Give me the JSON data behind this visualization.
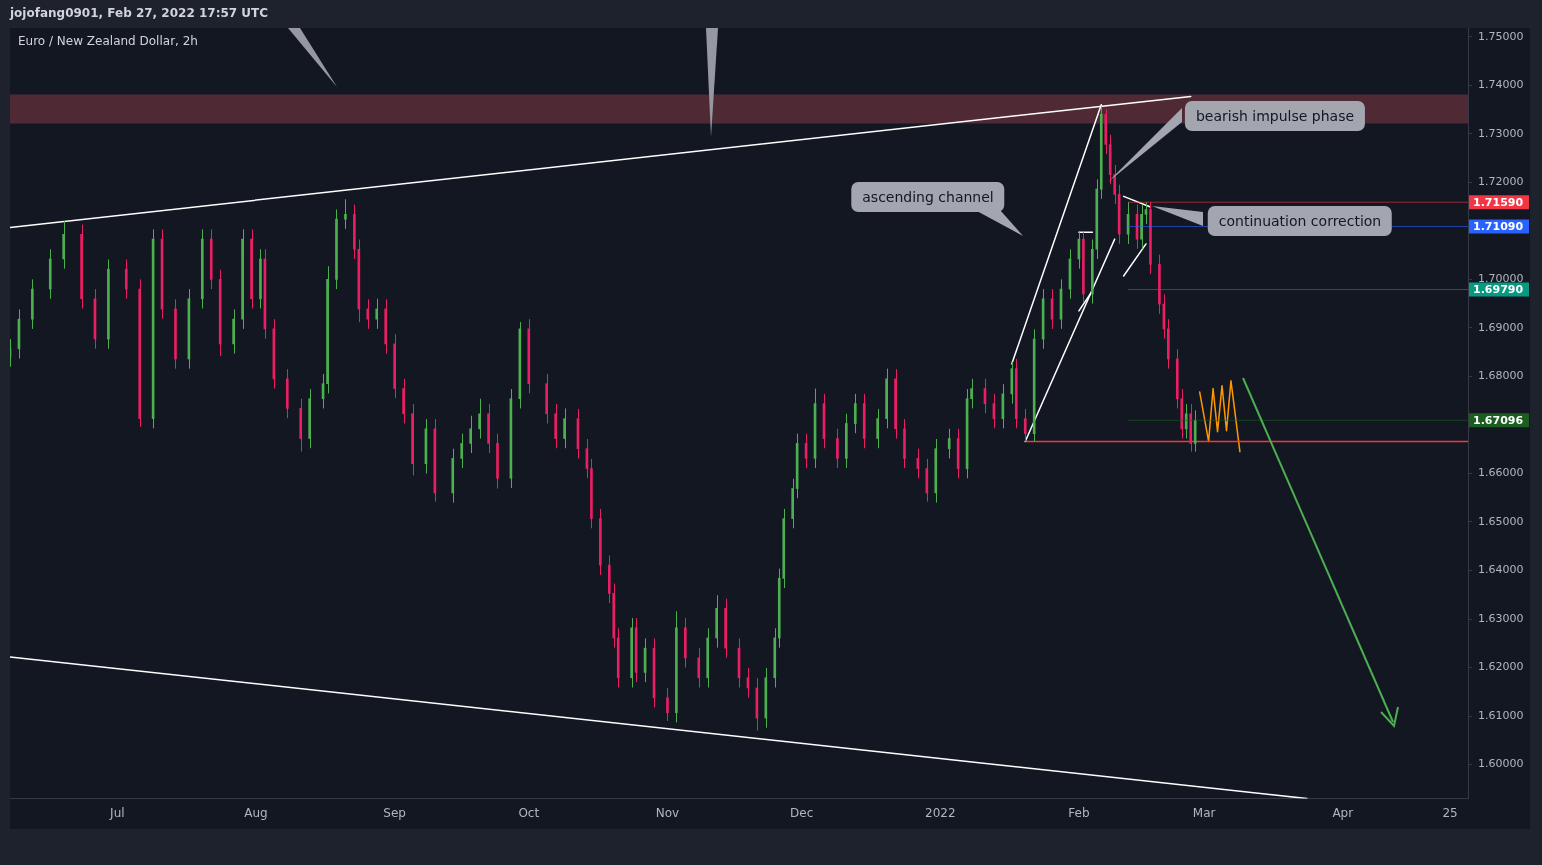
{
  "chart_data": {
    "type": "candlestick",
    "title": "Euro / New Zealand Dollar, 2h",
    "subtitle": "jojofang0901, Feb 27, 2022 17:57 UTC",
    "xlim": [
      "2021-06-07",
      "2022-04-29"
    ],
    "xticks": [
      {
        "value": "2021-07-01",
        "label": "Jul"
      },
      {
        "value": "2021-08-01",
        "label": "Aug"
      },
      {
        "value": "2021-09-01",
        "label": "Sep"
      },
      {
        "value": "2021-10-01",
        "label": "Oct"
      },
      {
        "value": "2021-11-01",
        "label": "Nov"
      },
      {
        "value": "2021-12-01",
        "label": "Dec"
      },
      {
        "value": "2022-01-01",
        "label": "2022"
      },
      {
        "value": "2022-02-01",
        "label": "Feb"
      },
      {
        "value": "2022-03-01",
        "label": "Mar"
      },
      {
        "value": "2022-04-01",
        "label": "Apr"
      },
      {
        "value": "2022-04-25",
        "label": "25"
      }
    ],
    "ylim": [
      1.593,
      1.7518
    ],
    "yticks": [
      {
        "value": 1.6,
        "label": "1.60000"
      },
      {
        "value": 1.61,
        "label": "1.61000"
      },
      {
        "value": 1.62,
        "label": "1.62000"
      },
      {
        "value": 1.63,
        "label": "1.63000"
      },
      {
        "value": 1.64,
        "label": "1.64000"
      },
      {
        "value": 1.65,
        "label": "1.65000"
      },
      {
        "value": 1.66,
        "label": "1.66000"
      },
      {
        "value": 1.67,
        "label": null
      },
      {
        "value": 1.68,
        "label": "1.68000"
      },
      {
        "value": 1.69,
        "label": "1.69000"
      },
      {
        "value": 1.7,
        "label": "1.70000"
      },
      {
        "value": 1.71,
        "label": null
      },
      {
        "value": 1.72,
        "label": "1.72000"
      },
      {
        "value": 1.73,
        "label": "1.73000"
      },
      {
        "value": 1.74,
        "label": "1.74000"
      },
      {
        "value": 1.75,
        "label": "1.75000"
      }
    ],
    "bands": [
      {
        "axis": "y",
        "from": 1.7321,
        "to": 1.7381,
        "color": "#4f2a35"
      }
    ],
    "annotations": [
      "ascending channel",
      "bearish impulse phase",
      "continuation correction"
    ],
    "ref_lines": [
      {
        "axis": "y",
        "value": 1.7159,
        "label": "1.71590",
        "color": "#f23645"
      },
      {
        "axis": "y",
        "value": 1.7109,
        "label": "1.71090",
        "color": "#2962ff"
      },
      {
        "axis": "y",
        "value": 1.6979,
        "label": "1.69790",
        "color": "#089981"
      },
      {
        "axis": "y",
        "value": 1.67096,
        "label": "1.67096",
        "color": "#1b5e20"
      }
    ],
    "series": [
      {
        "x": [
          "2021-06-07",
          "2021-06-09",
          "2021-06-12",
          "2021-06-16",
          "2021-06-19",
          "2021-06-23",
          "2021-06-26",
          "2021-06-29",
          "2021-07-03",
          "2021-07-06",
          "2021-07-09",
          "2021-07-11",
          "2021-07-14",
          "2021-07-17",
          "2021-07-20",
          "2021-07-22",
          "2021-07-24",
          "2021-07-27",
          "2021-07-29",
          "2021-07-31",
          "2021-08-02",
          "2021-08-03",
          "2021-08-05",
          "2021-08-08",
          "2021-08-11",
          "2021-08-13",
          "2021-08-16",
          "2021-08-17",
          "2021-08-19",
          "2021-08-21",
          "2021-08-23",
          "2021-08-24",
          "2021-08-26",
          "2021-08-28",
          "2021-08-30",
          "2021-09-01",
          "2021-09-03",
          "2021-09-05",
          "2021-09-08",
          "2021-09-10",
          "2021-09-14",
          "2021-09-16",
          "2021-09-18",
          "2021-09-20",
          "2021-09-22",
          "2021-09-24",
          "2021-09-27",
          "2021-09-29",
          "2021-10-01",
          "2021-10-05",
          "2021-10-07",
          "2021-10-09",
          "2021-10-12",
          "2021-10-14",
          "2021-10-15",
          "2021-10-17",
          "2021-10-19",
          "2021-10-20",
          "2021-10-21",
          "2021-10-24",
          "2021-10-25",
          "2021-10-27",
          "2021-10-29",
          "2021-11-01",
          "2021-11-03",
          "2021-11-05",
          "2021-11-08",
          "2021-11-10",
          "2021-11-12",
          "2021-11-14",
          "2021-11-17",
          "2021-11-19",
          "2021-11-21",
          "2021-11-23",
          "2021-11-25",
          "2021-11-26",
          "2021-11-27",
          "2021-11-29",
          "2021-11-30",
          "2021-12-02",
          "2021-12-04",
          "2021-12-06",
          "2021-12-09",
          "2021-12-11",
          "2021-12-13",
          "2021-12-15",
          "2021-12-18",
          "2021-12-20",
          "2021-12-22",
          "2021-12-24",
          "2021-12-27",
          "2021-12-29",
          "2021-12-31",
          "2022-01-03",
          "2022-01-05",
          "2022-01-07",
          "2022-01-08",
          "2022-01-11",
          "2022-01-13",
          "2022-01-15",
          "2022-01-17",
          "2022-01-18",
          "2022-01-20",
          "2022-01-22",
          "2022-01-24",
          "2022-01-26",
          "2022-01-28",
          "2022-01-30",
          "2022-02-01",
          "2022-02-02",
          "2022-02-04",
          "2022-02-05",
          "2022-02-06",
          "2022-02-07",
          "2022-02-08",
          "2022-02-09",
          "2022-02-10",
          "2022-02-12",
          "2022-02-14",
          "2022-02-15",
          "2022-02-16",
          "2022-02-17",
          "2022-02-19",
          "2022-02-20",
          "2022-02-21",
          "2022-02-23",
          "2022-02-24",
          "2022-02-25",
          "2022-02-26",
          "2022-02-27"
        ],
        "ohlc": [
          [
            1.684,
            1.6877,
            1.682,
            1.6857
          ],
          [
            1.6857,
            1.6938,
            1.6837,
            1.6918
          ],
          [
            1.6918,
            1.7,
            1.6898,
            1.698
          ],
          [
            1.698,
            1.7062,
            1.696,
            1.7042
          ],
          [
            1.7042,
            1.712,
            1.7022,
            1.7093
          ],
          [
            1.7093,
            1.7113,
            1.694,
            1.696
          ],
          [
            1.696,
            1.698,
            1.6857,
            1.6877
          ],
          [
            1.6877,
            1.7041,
            1.6857,
            1.7021
          ],
          [
            1.7021,
            1.7041,
            1.696,
            1.698
          ],
          [
            1.698,
            1.7,
            1.6696,
            1.6713
          ],
          [
            1.6713,
            1.7103,
            1.6693,
            1.7083
          ],
          [
            1.7083,
            1.7103,
            1.6919,
            1.6939
          ],
          [
            1.6939,
            1.6959,
            1.6816,
            1.6836
          ],
          [
            1.6836,
            1.698,
            1.6816,
            1.696
          ],
          [
            1.696,
            1.7103,
            1.694,
            1.7083
          ],
          [
            1.7083,
            1.7103,
            1.698,
            1.7
          ],
          [
            1.7,
            1.702,
            1.6842,
            1.6867
          ],
          [
            1.6867,
            1.6938,
            1.6847,
            1.6918
          ],
          [
            1.6918,
            1.7103,
            1.6898,
            1.7083
          ],
          [
            1.7083,
            1.7103,
            1.694,
            1.696
          ],
          [
            1.696,
            1.7062,
            1.694,
            1.7042
          ],
          [
            1.7042,
            1.7062,
            1.6878,
            1.6898
          ],
          [
            1.6898,
            1.6918,
            1.6775,
            1.6795
          ],
          [
            1.6795,
            1.6815,
            1.6714,
            1.6734
          ],
          [
            1.6734,
            1.6754,
            1.6645,
            1.6672
          ],
          [
            1.6672,
            1.6774,
            1.6652,
            1.6754
          ],
          [
            1.6754,
            1.6805,
            1.6734,
            1.6785
          ],
          [
            1.6785,
            1.7027,
            1.6765,
            1.7
          ],
          [
            1.7,
            1.7144,
            1.698,
            1.7124
          ],
          [
            1.7124,
            1.7165,
            1.7104,
            1.7134
          ],
          [
            1.7134,
            1.7154,
            1.7042,
            1.7062
          ],
          [
            1.7062,
            1.7082,
            1.6912,
            1.6939
          ],
          [
            1.6939,
            1.6959,
            1.6898,
            1.6918
          ],
          [
            1.6918,
            1.696,
            1.6898,
            1.6939
          ],
          [
            1.6939,
            1.6959,
            1.6847,
            1.6867
          ],
          [
            1.6867,
            1.6887,
            1.6755,
            1.6775
          ],
          [
            1.6775,
            1.6795,
            1.6703,
            1.6723
          ],
          [
            1.6723,
            1.6743,
            1.6596,
            1.662
          ],
          [
            1.662,
            1.6712,
            1.66,
            1.6692
          ],
          [
            1.6692,
            1.6712,
            1.6542,
            1.656
          ],
          [
            1.656,
            1.6651,
            1.654,
            1.6631
          ],
          [
            1.6631,
            1.6682,
            1.6611,
            1.6662
          ],
          [
            1.6662,
            1.6719,
            1.6642,
            1.6692
          ],
          [
            1.6692,
            1.6754,
            1.6672,
            1.6723
          ],
          [
            1.6723,
            1.6743,
            1.6642,
            1.6662
          ],
          [
            1.6662,
            1.6682,
            1.6569,
            1.659
          ],
          [
            1.659,
            1.6774,
            1.657,
            1.6754
          ],
          [
            1.6754,
            1.6912,
            1.6734,
            1.6898
          ],
          [
            1.6898,
            1.6918,
            1.6765,
            1.6785
          ],
          [
            1.6785,
            1.6805,
            1.6703,
            1.6723
          ],
          [
            1.6723,
            1.6743,
            1.6652,
            1.6672
          ],
          [
            1.6672,
            1.6734,
            1.6652,
            1.6713
          ],
          [
            1.6713,
            1.6733,
            1.6631,
            1.6651
          ],
          [
            1.6651,
            1.6671,
            1.659,
            1.661
          ],
          [
            1.661,
            1.663,
            1.6487,
            1.6507
          ],
          [
            1.6507,
            1.6527,
            1.6391,
            1.6411
          ],
          [
            1.6411,
            1.6431,
            1.6333,
            1.6353
          ],
          [
            1.6353,
            1.6373,
            1.6241,
            1.6261
          ],
          [
            1.6261,
            1.6281,
            1.6159,
            1.6179
          ],
          [
            1.6179,
            1.6302,
            1.6159,
            1.6282
          ],
          [
            1.6282,
            1.6302,
            1.617,
            1.619
          ],
          [
            1.619,
            1.626,
            1.617,
            1.624
          ],
          [
            1.624,
            1.626,
            1.6118,
            1.6138
          ],
          [
            1.6138,
            1.6158,
            1.609,
            1.6107
          ],
          [
            1.6107,
            1.6316,
            1.6087,
            1.6282
          ],
          [
            1.6282,
            1.6302,
            1.62,
            1.622
          ],
          [
            1.622,
            1.624,
            1.6159,
            1.6179
          ],
          [
            1.6179,
            1.6281,
            1.6159,
            1.6261
          ],
          [
            1.6261,
            1.6349,
            1.6241,
            1.6322
          ],
          [
            1.6322,
            1.6342,
            1.622,
            1.624
          ],
          [
            1.624,
            1.626,
            1.6159,
            1.6179
          ],
          [
            1.6179,
            1.6199,
            1.6138,
            1.6158
          ],
          [
            1.6158,
            1.6178,
            1.607,
            1.6096
          ],
          [
            1.6096,
            1.6199,
            1.6076,
            1.6179
          ],
          [
            1.6179,
            1.6281,
            1.6159,
            1.6261
          ],
          [
            1.6261,
            1.6404,
            1.6241,
            1.6384
          ],
          [
            1.6384,
            1.6527,
            1.6364,
            1.6507
          ],
          [
            1.6507,
            1.6589,
            1.6487,
            1.6569
          ],
          [
            1.6569,
            1.6682,
            1.6549,
            1.6662
          ],
          [
            1.6662,
            1.6682,
            1.6611,
            1.6631
          ],
          [
            1.6631,
            1.6775,
            1.6611,
            1.6744
          ],
          [
            1.6744,
            1.6764,
            1.6652,
            1.6672
          ],
          [
            1.6672,
            1.6692,
            1.6611,
            1.6631
          ],
          [
            1.6631,
            1.6723,
            1.6611,
            1.6703
          ],
          [
            1.6703,
            1.6764,
            1.6683,
            1.6744
          ],
          [
            1.6744,
            1.6764,
            1.6652,
            1.6672
          ],
          [
            1.6672,
            1.6733,
            1.6652,
            1.6713
          ],
          [
            1.6713,
            1.6816,
            1.6693,
            1.6795
          ],
          [
            1.6795,
            1.6815,
            1.6672,
            1.6692
          ],
          [
            1.6692,
            1.6712,
            1.6611,
            1.6631
          ],
          [
            1.6631,
            1.6651,
            1.659,
            1.661
          ],
          [
            1.661,
            1.663,
            1.6542,
            1.656
          ],
          [
            1.656,
            1.6671,
            1.654,
            1.6651
          ],
          [
            1.6651,
            1.6692,
            1.6631,
            1.6672
          ],
          [
            1.6672,
            1.6692,
            1.659,
            1.661
          ],
          [
            1.661,
            1.6774,
            1.659,
            1.6754
          ],
          [
            1.6754,
            1.6795,
            1.6734,
            1.6775
          ],
          [
            1.6775,
            1.6795,
            1.6724,
            1.6744
          ],
          [
            1.6744,
            1.6764,
            1.6693,
            1.6713
          ],
          [
            1.6713,
            1.6784,
            1.6693,
            1.6764
          ],
          [
            1.6764,
            1.683,
            1.6744,
            1.6816
          ],
          [
            1.6816,
            1.6836,
            1.6693,
            1.6713
          ],
          [
            1.6713,
            1.6733,
            1.6666,
            1.6682
          ],
          [
            1.6682,
            1.6897,
            1.6666,
            1.6877
          ],
          [
            1.6877,
            1.698,
            1.6857,
            1.696
          ],
          [
            1.696,
            1.698,
            1.6898,
            1.6918
          ],
          [
            1.6918,
            1.7,
            1.6898,
            1.698
          ],
          [
            1.698,
            1.7062,
            1.696,
            1.7042
          ],
          [
            1.7042,
            1.7097,
            1.7022,
            1.7083
          ],
          [
            1.7083,
            1.7097,
            1.6953,
            1.697
          ],
          [
            1.697,
            1.7082,
            1.695,
            1.7062
          ],
          [
            1.7062,
            1.7206,
            1.7042,
            1.7186
          ],
          [
            1.7186,
            1.7356,
            1.7166,
            1.734
          ],
          [
            1.734,
            1.735,
            1.7258,
            1.7278
          ],
          [
            1.7278,
            1.7298,
            1.7196,
            1.7216
          ],
          [
            1.7216,
            1.7236,
            1.7155,
            1.7175
          ],
          [
            1.7175,
            1.7195,
            1.7073,
            1.7093
          ],
          [
            1.7093,
            1.7159,
            1.7073,
            1.7134
          ],
          [
            1.7134,
            1.7154,
            1.7063,
            1.7083
          ],
          [
            1.7083,
            1.7154,
            1.7063,
            1.7134
          ],
          [
            1.7134,
            1.7159,
            1.7114,
            1.7144
          ],
          [
            1.7144,
            1.7159,
            1.7011,
            1.7031
          ],
          [
            1.7031,
            1.7051,
            1.6929,
            1.6949
          ],
          [
            1.6949,
            1.6969,
            1.6878,
            1.6898
          ],
          [
            1.6898,
            1.6918,
            1.6816,
            1.6836
          ],
          [
            1.6836,
            1.6856,
            1.6734,
            1.6754
          ],
          [
            1.6754,
            1.6774,
            1.6672,
            1.6692
          ],
          [
            1.6692,
            1.6743,
            1.6672,
            1.6723
          ],
          [
            1.6723,
            1.6743,
            1.6645,
            1.6662
          ],
          [
            1.6662,
            1.673,
            1.6645,
            1.67096
          ]
        ],
        "colors": [
          "#4caf50",
          "#4caf50",
          "#4caf50",
          "#4caf50",
          "#4caf50",
          "#e91e63",
          "#e91e63",
          "#4caf50",
          "#e91e63",
          "#e91e63",
          "#4caf50",
          "#e91e63",
          "#e91e63",
          "#4caf50",
          "#4caf50",
          "#e91e63",
          "#e91e63",
          "#4caf50",
          "#4caf50",
          "#e91e63",
          "#4caf50",
          "#e91e63",
          "#e91e63",
          "#e91e63",
          "#e91e63",
          "#4caf50",
          "#4caf50",
          "#4caf50",
          "#4caf50",
          "#4caf50",
          "#e91e63",
          "#e91e63",
          "#e91e63",
          "#4caf50",
          "#e91e63",
          "#e91e63",
          "#e91e63",
          "#e91e63",
          "#4caf50",
          "#e91e63",
          "#4caf50",
          "#4caf50",
          "#4caf50",
          "#4caf50",
          "#e91e63",
          "#e91e63",
          "#4caf50",
          "#4caf50",
          "#e91e63",
          "#e91e63",
          "#e91e63",
          "#4caf50",
          "#e91e63",
          "#e91e63",
          "#e91e63",
          "#e91e63",
          "#e91e63",
          "#e91e63",
          "#e91e63",
          "#4caf50",
          "#e91e63",
          "#4caf50",
          "#e91e63",
          "#e91e63",
          "#4caf50",
          "#e91e63",
          "#e91e63",
          "#4caf50",
          "#4caf50",
          "#e91e63",
          "#e91e63",
          "#e91e63",
          "#e91e63",
          "#4caf50",
          "#4caf50",
          "#4caf50",
          "#4caf50",
          "#4caf50",
          "#4caf50",
          "#e91e63",
          "#4caf50",
          "#e91e63",
          "#e91e63",
          "#4caf50",
          "#4caf50",
          "#e91e63",
          "#4caf50",
          "#4caf50",
          "#e91e63",
          "#e91e63",
          "#e91e63",
          "#e91e63",
          "#4caf50",
          "#4caf50",
          "#e91e63",
          "#4caf50",
          "#4caf50",
          "#e91e63",
          "#e91e63",
          "#4caf50",
          "#4caf50",
          "#e91e63",
          "#e91e63",
          "#4caf50",
          "#4caf50",
          "#e91e63",
          "#4caf50",
          "#4caf50",
          "#4caf50",
          "#e91e63",
          "#4caf50",
          "#4caf50",
          "#4caf50",
          "#e91e63",
          "#e91e63",
          "#e91e63",
          "#e91e63",
          "#4caf50",
          "#e91e63",
          "#4caf50",
          "#4caf50",
          "#e91e63",
          "#e91e63",
          "#e91e63",
          "#e91e63",
          "#e91e63",
          "#e91e63",
          "#4caf50",
          "#e91e63",
          "#4caf50"
        ]
      },
      {
        "type": "line",
        "color": "#ffffff",
        "x": [
          "2021-06-07",
          "2022-02-26"
        ],
        "values": [
          1.7107,
          1.7377
        ]
      },
      {
        "type": "line",
        "color": "#ffffff",
        "x": [
          "2021-06-07",
          "2022-03-24"
        ],
        "values": [
          1.6222,
          1.593
        ]
      },
      {
        "type": "line",
        "color": "#ffffff",
        "x": [
          "2022-01-17",
          "2022-02-06"
        ],
        "values": [
          1.6826,
          1.736
        ]
      },
      {
        "type": "line",
        "color": "#ffffff",
        "x": [
          "2022-01-20",
          "2022-02-09"
        ],
        "values": [
          1.6666,
          1.7083
        ]
      },
      {
        "type": "line",
        "color": "#ffffff",
        "x": [
          "2022-02-01",
          "2022-02-04"
        ],
        "values": [
          1.7097,
          1.7097
        ]
      },
      {
        "type": "line",
        "color": "#ffffff",
        "x": [
          "2022-02-01",
          "2022-02-04"
        ],
        "values": [
          1.6935,
          1.6976
        ]
      },
      {
        "type": "line",
        "color": "#ffffff",
        "x": [
          "2022-02-11",
          "2022-02-17"
        ],
        "values": [
          1.7171,
          1.7149
        ]
      },
      {
        "type": "line",
        "color": "#ffffff",
        "x": [
          "2022-02-11",
          "2022-02-16"
        ],
        "values": [
          1.7007,
          1.7073
        ]
      },
      {
        "type": "line",
        "color": "#f23645",
        "x": [
          "2022-01-20",
          "2022-04-29"
        ],
        "values": [
          1.6666,
          1.6666
        ]
      },
      {
        "type": "line",
        "color": "#ff9800",
        "x": [
          "2022-02-28",
          "2022-03-02",
          "2022-03-03",
          "2022-03-04",
          "2022-03-05",
          "2022-03-06",
          "2022-03-07",
          "2022-03-09"
        ],
        "values": [
          1.6768,
          1.6666,
          1.6775,
          1.6686,
          1.6781,
          1.6688,
          1.6791,
          1.6645
        ]
      }
    ]
  }
}
